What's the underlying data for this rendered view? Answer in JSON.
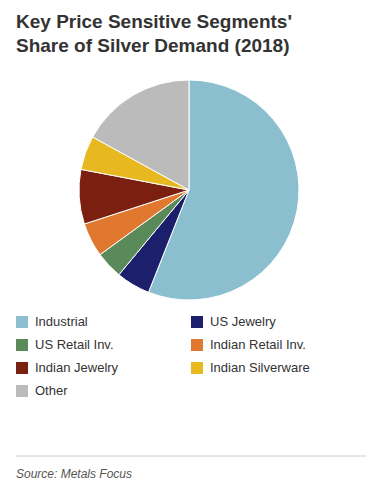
{
  "chart_data": {
    "type": "pie",
    "title": "Key Price Sensitive Segments'\nShare of Silver Demand (2018)",
    "categories": [
      "Industrial",
      "US Jewelry",
      "US Retail Inv.",
      "Indian Retail Inv.",
      "Indian Jewelry",
      "Indian Silverware",
      "Other"
    ],
    "values": [
      56,
      5,
      4,
      5,
      8,
      5,
      17
    ],
    "colors": [
      "#8BBFCF",
      "#1C1F6B",
      "#5B8A5A",
      "#E07830",
      "#7B2010",
      "#E8B820",
      "#BBBBBB"
    ],
    "legend": "bottom",
    "annotations": [
      "Source: Metals Focus"
    ]
  }
}
